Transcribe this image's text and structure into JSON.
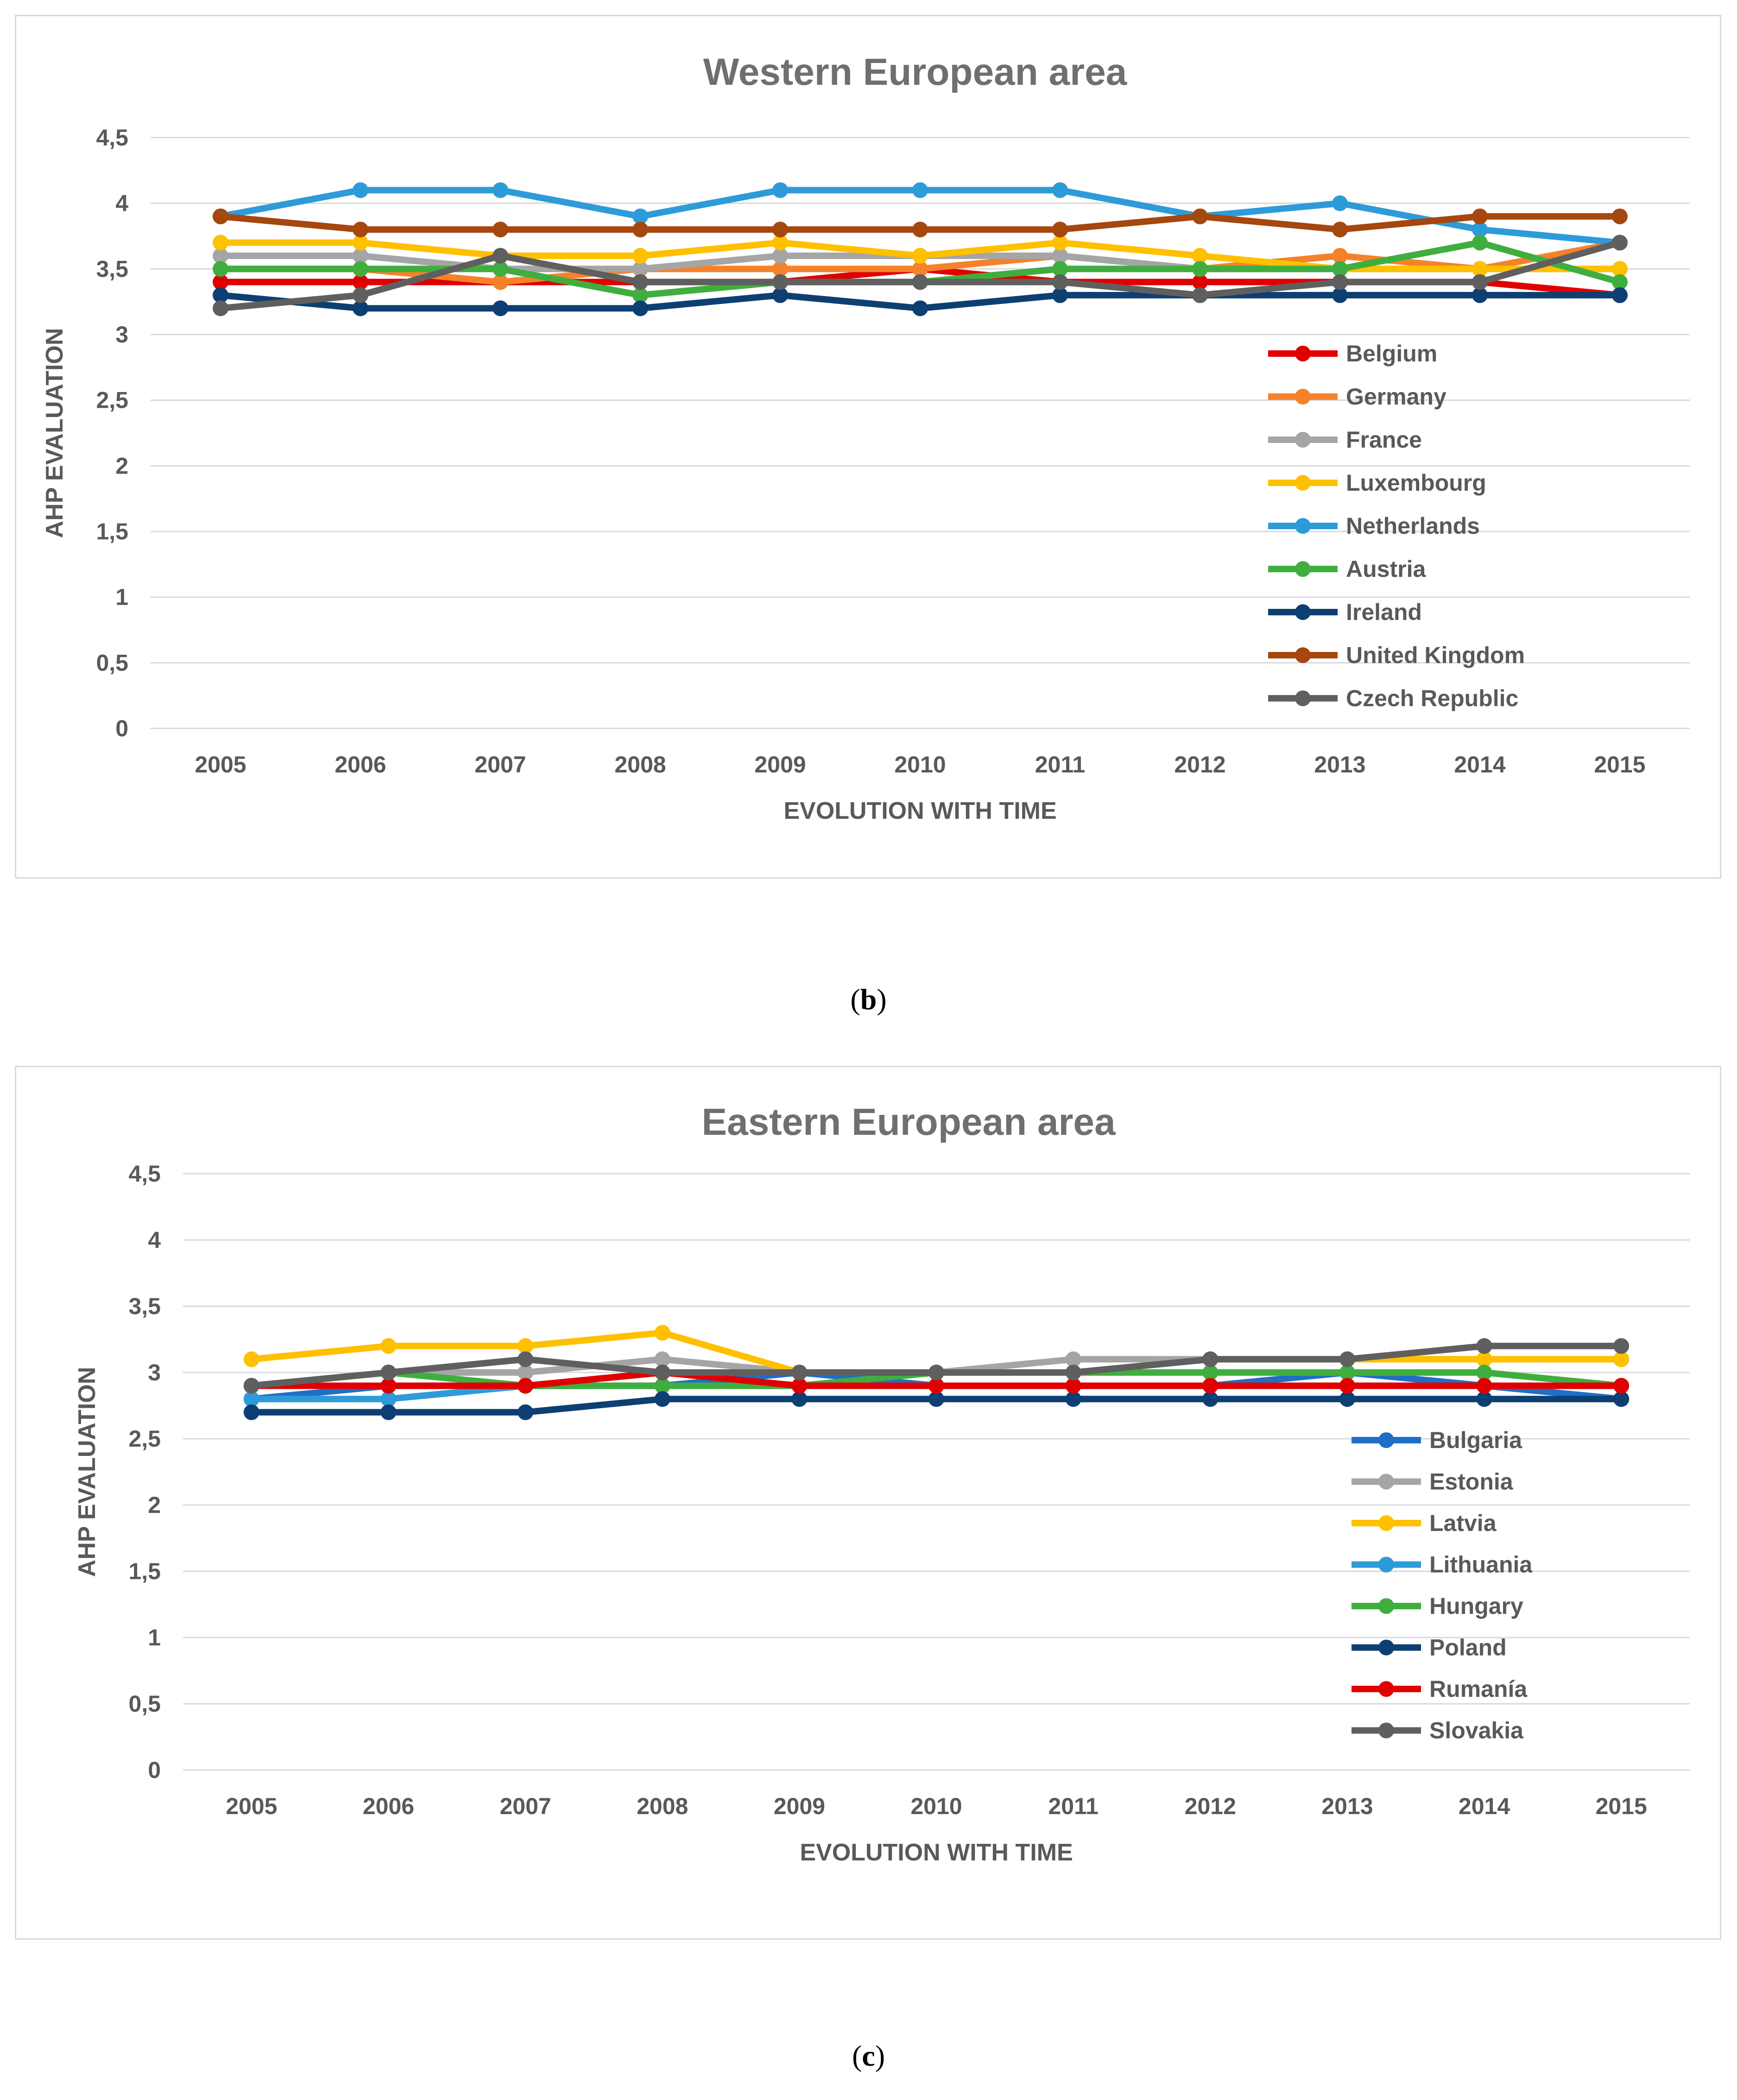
{
  "captions": {
    "b": "b",
    "c": "c"
  },
  "chart_data": [
    {
      "type": "line",
      "title": "Western European area",
      "xlabel": "EVOLUTION  WITH TIME",
      "ylabel": "AHP EVALUATION",
      "ylim": [
        0,
        4.5
      ],
      "yticks": [
        "0",
        "0,5",
        "1",
        "1,5",
        "2",
        "2,5",
        "3",
        "3,5",
        "4",
        "4,5"
      ],
      "categories": [
        "2005",
        "2006",
        "2007",
        "2008",
        "2009",
        "2010",
        "2011",
        "2012",
        "2013",
        "2014",
        "2015"
      ],
      "grid": true,
      "legend_position": "right",
      "series": [
        {
          "name": "Belgium",
          "color": "#e00000",
          "values": [
            3.4,
            3.4,
            3.4,
            3.4,
            3.4,
            3.5,
            3.4,
            3.4,
            3.4,
            3.4,
            3.3
          ]
        },
        {
          "name": "Germany",
          "color": "#f5822a",
          "values": [
            3.5,
            3.5,
            3.4,
            3.5,
            3.5,
            3.5,
            3.6,
            3.5,
            3.6,
            3.5,
            3.7
          ]
        },
        {
          "name": "France",
          "color": "#a5a5a5",
          "values": [
            3.6,
            3.6,
            3.5,
            3.5,
            3.6,
            3.6,
            3.6,
            3.5,
            3.5,
            3.5,
            3.5
          ]
        },
        {
          "name": "Luxembourg",
          "color": "#ffc000",
          "values": [
            3.7,
            3.7,
            3.6,
            3.6,
            3.7,
            3.6,
            3.7,
            3.6,
            3.5,
            3.5,
            3.5
          ]
        },
        {
          "name": "Netherlands",
          "color": "#2e9bd9",
          "values": [
            3.9,
            4.1,
            4.1,
            3.9,
            4.1,
            4.1,
            4.1,
            3.9,
            4.0,
            3.8,
            3.7
          ]
        },
        {
          "name": "Austria",
          "color": "#3fae3f",
          "values": [
            3.5,
            3.5,
            3.5,
            3.3,
            3.4,
            3.4,
            3.5,
            3.5,
            3.5,
            3.7,
            3.4
          ]
        },
        {
          "name": "Ireland",
          "color": "#0e3f73",
          "values": [
            3.3,
            3.2,
            3.2,
            3.2,
            3.3,
            3.2,
            3.3,
            3.3,
            3.3,
            3.3,
            3.3
          ]
        },
        {
          "name": "United Kingdom",
          "color": "#a5470e",
          "values": [
            3.9,
            3.8,
            3.8,
            3.8,
            3.8,
            3.8,
            3.8,
            3.9,
            3.8,
            3.9,
            3.9
          ]
        },
        {
          "name": "Czech Republic",
          "color": "#5f5f5f",
          "values": [
            3.2,
            3.3,
            3.6,
            3.4,
            3.4,
            3.4,
            3.4,
            3.3,
            3.4,
            3.4,
            3.7
          ]
        }
      ]
    },
    {
      "type": "line",
      "title": "Eastern European area",
      "xlabel": "EVOLUTION  WITH TIME",
      "ylabel": "AHP EVALUATION",
      "ylim": [
        0,
        4.5
      ],
      "yticks": [
        "0",
        "0,5",
        "1",
        "1,5",
        "2",
        "2,5",
        "3",
        "3,5",
        "4",
        "4,5"
      ],
      "categories": [
        "2005",
        "2006",
        "2007",
        "2008",
        "2009",
        "2010",
        "2011",
        "2012",
        "2013",
        "2014",
        "2015"
      ],
      "grid": true,
      "legend_position": "right",
      "series": [
        {
          "name": "Bulgaria",
          "color": "#1f6fc5",
          "values": [
            2.8,
            2.9,
            2.9,
            2.9,
            3.0,
            2.9,
            2.9,
            2.9,
            3.0,
            2.9,
            2.8
          ]
        },
        {
          "name": "Estonia",
          "color": "#a5a5a5",
          "values": [
            2.9,
            3.0,
            3.0,
            3.1,
            3.0,
            3.0,
            3.1,
            3.1,
            3.1,
            3.1,
            3.1
          ]
        },
        {
          "name": "Latvia",
          "color": "#ffc000",
          "values": [
            3.1,
            3.2,
            3.2,
            3.3,
            3.0,
            3.0,
            3.0,
            3.1,
            3.1,
            3.1,
            3.1
          ]
        },
        {
          "name": "Lithuania",
          "color": "#2e9bd9",
          "values": [
            2.8,
            2.8,
            2.9,
            2.9,
            2.9,
            2.9,
            2.9,
            2.9,
            2.9,
            2.9,
            2.9
          ]
        },
        {
          "name": "Hungary",
          "color": "#3fae3f",
          "values": [
            2.9,
            3.0,
            2.9,
            2.9,
            2.9,
            3.0,
            3.0,
            3.0,
            3.0,
            3.0,
            2.9
          ]
        },
        {
          "name": "Poland",
          "color": "#0e3f73",
          "values": [
            2.7,
            2.7,
            2.7,
            2.8,
            2.8,
            2.8,
            2.8,
            2.8,
            2.8,
            2.8,
            2.8
          ]
        },
        {
          "name": "Rumanía",
          "color": "#e00000",
          "values": [
            2.9,
            2.9,
            2.9,
            3.0,
            2.9,
            2.9,
            2.9,
            2.9,
            2.9,
            2.9,
            2.9
          ]
        },
        {
          "name": "Slovakia",
          "color": "#5f5f5f",
          "values": [
            2.9,
            3.0,
            3.1,
            3.0,
            3.0,
            3.0,
            3.0,
            3.1,
            3.1,
            3.2,
            3.2
          ]
        }
      ]
    }
  ]
}
